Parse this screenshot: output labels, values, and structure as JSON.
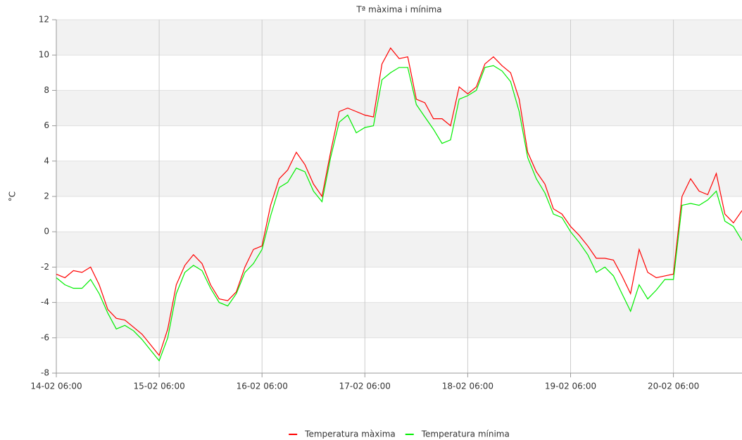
{
  "chart_data": {
    "type": "line",
    "title": "Tª màxima i mínima",
    "y_label": "°C",
    "x": [
      "14-02 06:00",
      "14-02 08:00",
      "14-02 10:00",
      "14-02 12:00",
      "14-02 14:00",
      "14-02 16:00",
      "14-02 18:00",
      "14-02 20:00",
      "14-02 22:00",
      "15-02 00:00",
      "15-02 02:00",
      "15-02 04:00",
      "15-02 06:00",
      "15-02 08:00",
      "15-02 10:00",
      "15-02 12:00",
      "15-02 14:00",
      "15-02 16:00",
      "15-02 18:00",
      "15-02 20:00",
      "15-02 22:00",
      "16-02 00:00",
      "16-02 02:00",
      "16-02 04:00",
      "16-02 06:00",
      "16-02 08:00",
      "16-02 10:00",
      "16-02 12:00",
      "16-02 14:00",
      "16-02 16:00",
      "16-02 18:00",
      "16-02 20:00",
      "16-02 22:00",
      "17-02 00:00",
      "17-02 02:00",
      "17-02 04:00",
      "17-02 06:00",
      "17-02 08:00",
      "17-02 10:00",
      "17-02 12:00",
      "17-02 14:00",
      "17-02 16:00",
      "17-02 18:00",
      "17-02 20:00",
      "17-02 22:00",
      "18-02 00:00",
      "18-02 02:00",
      "18-02 04:00",
      "18-02 06:00",
      "18-02 08:00",
      "18-02 10:00",
      "18-02 12:00",
      "18-02 14:00",
      "18-02 16:00",
      "18-02 18:00",
      "18-02 20:00",
      "18-02 22:00",
      "19-02 00:00",
      "19-02 02:00",
      "19-02 04:00",
      "19-02 06:00",
      "19-02 08:00",
      "19-02 10:00",
      "19-02 12:00",
      "19-02 14:00",
      "19-02 16:00",
      "19-02 18:00",
      "19-02 20:00",
      "19-02 22:00",
      "20-02 00:00",
      "20-02 02:00",
      "20-02 04:00",
      "20-02 06:00",
      "20-02 08:00",
      "20-02 10:00",
      "20-02 12:00",
      "20-02 14:00",
      "20-02 16:00",
      "20-02 18:00",
      "20-02 20:00",
      "20-02 22:00"
    ],
    "series": [
      {
        "name": "Temperatura màxima",
        "color": "#ff0000",
        "values": [
          -2.4,
          -2.6,
          -2.2,
          -2.3,
          -2.0,
          -3.0,
          -4.4,
          -4.9,
          -5.0,
          -5.4,
          -5.8,
          -6.4,
          -7.0,
          -5.5,
          -3.0,
          -1.9,
          -1.3,
          -1.8,
          -3.0,
          -3.8,
          -3.9,
          -3.4,
          -2.0,
          -1.0,
          -0.8,
          1.5,
          3.0,
          3.5,
          4.5,
          3.8,
          2.7,
          2.0,
          4.5,
          6.8,
          7.0,
          6.8,
          6.6,
          6.5,
          9.5,
          10.4,
          9.8,
          9.9,
          7.5,
          7.3,
          6.4,
          6.4,
          6.0,
          8.2,
          7.8,
          8.2,
          9.5,
          9.9,
          9.4,
          9.0,
          7.5,
          4.5,
          3.4,
          2.7,
          1.3,
          1.0,
          0.3,
          -0.2,
          -0.8,
          -1.5,
          -1.5,
          -1.6,
          -2.5,
          -3.5,
          -1.0,
          -2.3,
          -2.6,
          -2.5,
          -2.4,
          2.0,
          3.0,
          2.3,
          2.1,
          3.3,
          1.0,
          0.5,
          1.2
        ]
      },
      {
        "name": "Temperatura mínima",
        "color": "#00ee00",
        "values": [
          -2.6,
          -3.0,
          -3.2,
          -3.2,
          -2.7,
          -3.5,
          -4.6,
          -5.5,
          -5.3,
          -5.6,
          -6.1,
          -6.7,
          -7.3,
          -6.0,
          -3.5,
          -2.3,
          -1.9,
          -2.2,
          -3.2,
          -4.0,
          -4.2,
          -3.5,
          -2.3,
          -1.8,
          -1.0,
          0.9,
          2.5,
          2.8,
          3.6,
          3.4,
          2.3,
          1.7,
          4.2,
          6.2,
          6.6,
          5.6,
          5.9,
          6.0,
          8.6,
          9.0,
          9.3,
          9.3,
          7.2,
          6.5,
          5.8,
          5.0,
          5.2,
          7.5,
          7.7,
          8.0,
          9.3,
          9.4,
          9.1,
          8.5,
          6.8,
          4.2,
          3.0,
          2.2,
          1.0,
          0.8,
          0.0,
          -0.6,
          -1.3,
          -2.3,
          -2.0,
          -2.5,
          -3.5,
          -4.5,
          -3.0,
          -3.8,
          -3.3,
          -2.7,
          -2.7,
          1.5,
          1.6,
          1.5,
          1.8,
          2.3,
          0.6,
          0.3,
          -0.5
        ]
      }
    ],
    "xlim": [
      "14-02 06:00",
      "20-02 22:00"
    ],
    "xticks": [
      "14-02 06:00",
      "15-02 06:00",
      "16-02 06:00",
      "17-02 06:00",
      "18-02 06:00",
      "19-02 06:00",
      "20-02 06:00"
    ],
    "ylim": [
      -8,
      12
    ],
    "yticks": [
      -8,
      -6,
      -4,
      -2,
      0,
      2,
      4,
      6,
      8,
      10,
      12
    ],
    "grid": true,
    "legend": "bottom"
  }
}
